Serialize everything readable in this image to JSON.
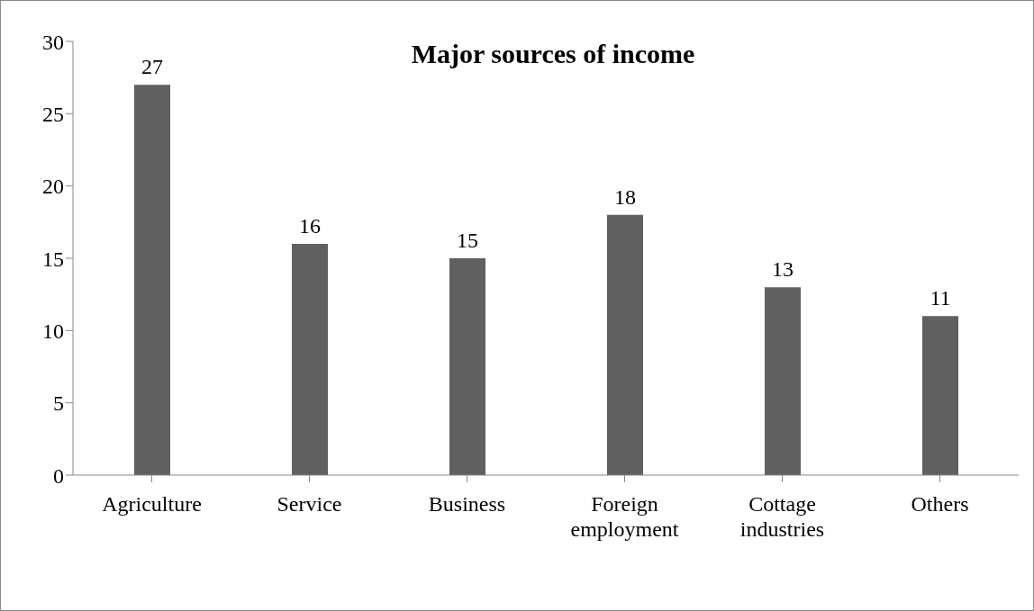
{
  "chart_data": {
    "type": "bar",
    "title": "Major sources of income",
    "categories": [
      "Agriculture",
      "Service",
      "Business",
      "Foreign employment",
      "Cottage industries",
      "Others"
    ],
    "values": [
      27,
      16,
      15,
      18,
      13,
      11
    ],
    "color": "#606060",
    "ylim": [
      0,
      30
    ],
    "yticks": [
      0,
      5,
      10,
      15,
      20,
      25,
      30
    ],
    "grid": false,
    "data_labels": true
  }
}
